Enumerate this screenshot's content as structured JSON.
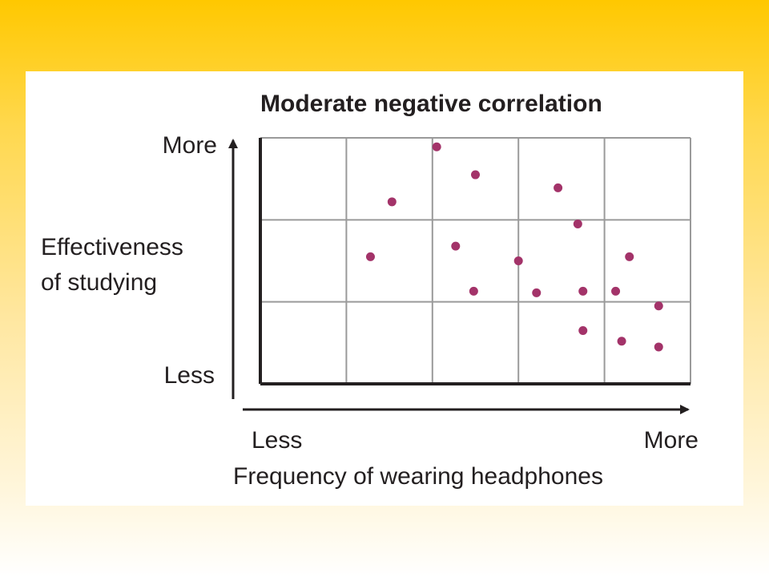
{
  "chart_data": {
    "type": "scatter",
    "title": "Moderate negative correlation",
    "xlabel": "Frequency of wearing headphones",
    "ylabel": [
      "Effectiveness",
      "of studying"
    ],
    "x_tick_labels": {
      "low": "Less",
      "high": "More"
    },
    "y_tick_labels": {
      "low": "Less",
      "high": "More"
    },
    "xlim": [
      0,
      5
    ],
    "ylim": [
      0,
      3
    ],
    "grid": true,
    "point_color": "#a33369",
    "points": [
      {
        "x": 2.05,
        "y": 2.89
      },
      {
        "x": 2.5,
        "y": 2.55
      },
      {
        "x": 1.53,
        "y": 2.22
      },
      {
        "x": 3.46,
        "y": 2.39
      },
      {
        "x": 3.69,
        "y": 1.95
      },
      {
        "x": 1.28,
        "y": 1.55
      },
      {
        "x": 2.27,
        "y": 1.68
      },
      {
        "x": 3.0,
        "y": 1.5
      },
      {
        "x": 4.29,
        "y": 1.55
      },
      {
        "x": 2.48,
        "y": 1.13
      },
      {
        "x": 3.21,
        "y": 1.11
      },
      {
        "x": 3.75,
        "y": 1.13
      },
      {
        "x": 4.13,
        "y": 1.13
      },
      {
        "x": 4.63,
        "y": 0.95
      },
      {
        "x": 3.75,
        "y": 0.65
      },
      {
        "x": 4.2,
        "y": 0.52
      },
      {
        "x": 4.63,
        "y": 0.45
      }
    ]
  }
}
